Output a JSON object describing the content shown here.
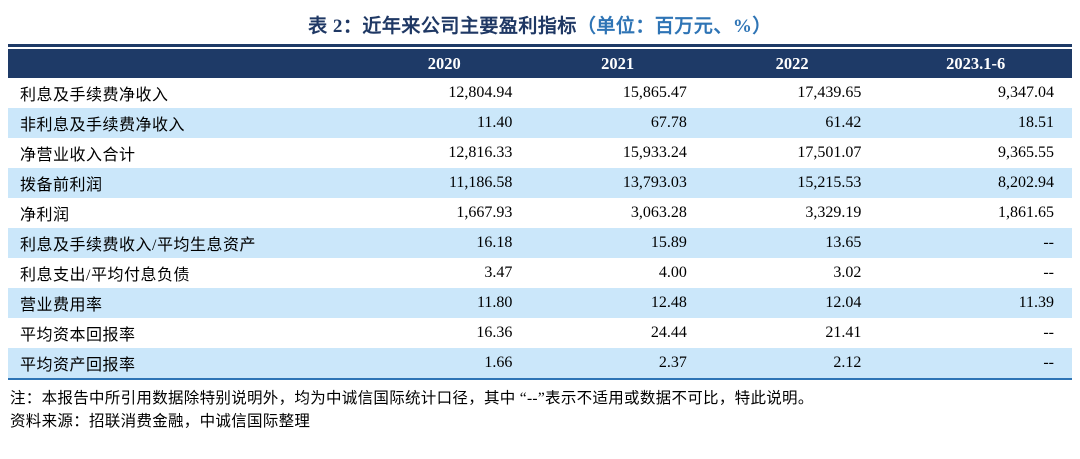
{
  "title": {
    "main": "表 2：近年来公司主要盈利指标",
    "unit": "（单位：百万元、%）"
  },
  "table": {
    "columns": [
      "",
      "2020",
      "2021",
      "2022",
      "2023.1-6"
    ],
    "rows": [
      {
        "label": "利息及手续费净收入",
        "values": [
          "12,804.94",
          "15,865.47",
          "17,439.65",
          "9,347.04"
        ]
      },
      {
        "label": "非利息及手续费净收入",
        "values": [
          "11.40",
          "67.78",
          "61.42",
          "18.51"
        ]
      },
      {
        "label": "净营业收入合计",
        "values": [
          "12,816.33",
          "15,933.24",
          "17,501.07",
          "9,365.55"
        ]
      },
      {
        "label": "拨备前利润",
        "values": [
          "11,186.58",
          "13,793.03",
          "15,215.53",
          "8,202.94"
        ]
      },
      {
        "label": "净利润",
        "values": [
          "1,667.93",
          "3,063.28",
          "3,329.19",
          "1,861.65"
        ]
      },
      {
        "label": "利息及手续费收入/平均生息资产",
        "values": [
          "16.18",
          "15.89",
          "13.65",
          "--"
        ]
      },
      {
        "label": "利息支出/平均付息负债",
        "values": [
          "3.47",
          "4.00",
          "3.02",
          "--"
        ]
      },
      {
        "label": "营业费用率",
        "values": [
          "11.80",
          "12.48",
          "12.04",
          "11.39"
        ]
      },
      {
        "label": "平均资本回报率",
        "values": [
          "16.36",
          "24.44",
          "21.41",
          "--"
        ]
      },
      {
        "label": "平均资产回报率",
        "values": [
          "1.66",
          "2.37",
          "2.12",
          "--"
        ]
      }
    ]
  },
  "notes": {
    "note": "注：本报告中所引用数据除特别说明外，均为中诚信国际统计口径，其中 “--”表示不适用或数据不可比，特此说明。",
    "source": "资料来源：招联消费金融，中诚信国际整理"
  },
  "colors": {
    "header_bg": "#1E3A67",
    "row_alt_bg": "#CBE7FA",
    "title_main": "#1F3864",
    "title_unit": "#2E74B5",
    "bottom_rule": "#2E74B5"
  }
}
